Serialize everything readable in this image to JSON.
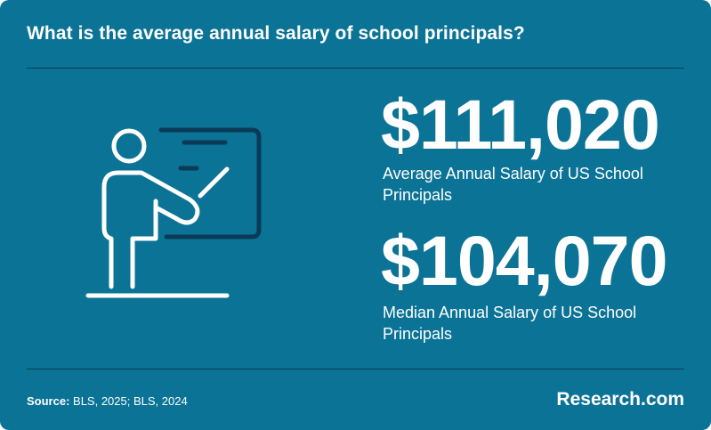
{
  "header": {
    "title": "What is the average annual salary of school principals?"
  },
  "stats": [
    {
      "value": "$111,020",
      "label": "Average Annual Salary of US School Principals"
    },
    {
      "value": "$104,070",
      "label": "Median Annual Salary of US School Principals"
    }
  ],
  "footer": {
    "source_label": "Source:",
    "source_text": "BLS, 2025; BLS, 2024",
    "brand": "Research.com"
  },
  "illustration": {
    "icon": "teacher-at-board-icon"
  },
  "colors": {
    "background": "#0b7396",
    "divider": "#0a3a55",
    "text": "#ffffff",
    "board_outline": "#0a3a55"
  }
}
